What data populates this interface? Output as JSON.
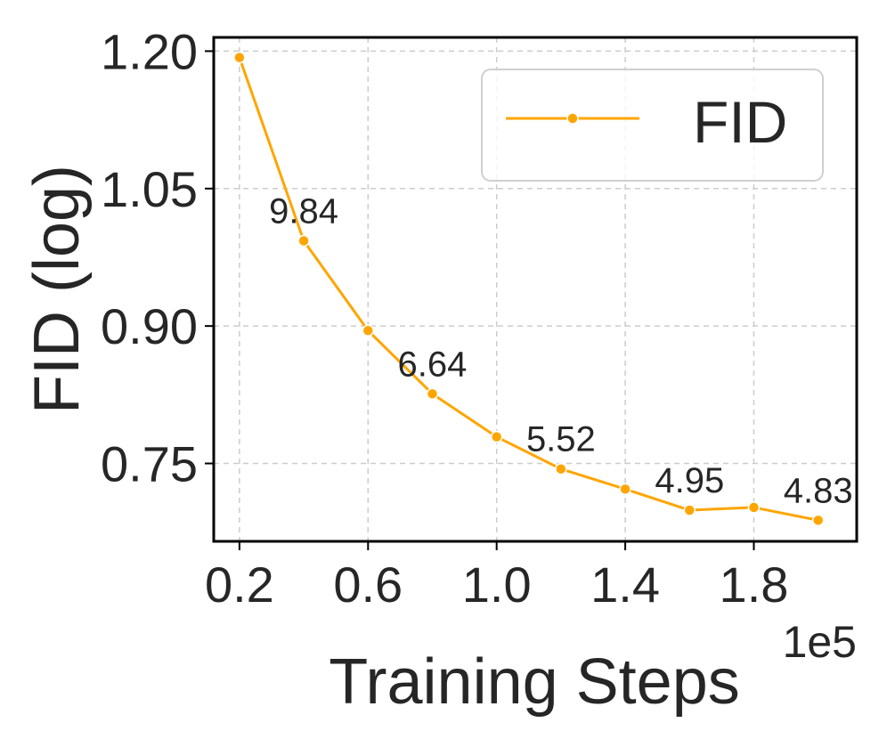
{
  "chart_data": {
    "type": "line",
    "xlabel": "Training Steps",
    "ylabel": "FID (log)",
    "x_offset_label": "1e5",
    "x_ticks": [
      "0.2",
      "0.6",
      "1.0",
      "1.4",
      "1.8"
    ],
    "y_ticks": [
      "0.75",
      "0.90",
      "1.05",
      "1.20"
    ],
    "xlim": [
      0.12,
      2.12
    ],
    "ylim": [
      0.665,
      1.215
    ],
    "grid": true,
    "legend_position": "top-right",
    "series": [
      {
        "name": "FID",
        "color": "#FFA500",
        "x": [
          0.2,
          0.4,
          0.6,
          0.8,
          1.0,
          1.2,
          1.4,
          1.6,
          1.8,
          2.0
        ],
        "y": [
          1.193,
          0.993,
          0.895,
          0.826,
          0.779,
          0.744,
          0.722,
          0.699,
          0.702,
          0.688
        ]
      }
    ],
    "annotations": [
      {
        "text": "9.84",
        "x": 0.4,
        "y": 0.993
      },
      {
        "text": "6.64",
        "x": 0.8,
        "y": 0.826
      },
      {
        "text": "5.52",
        "x": 1.2,
        "y": 0.744
      },
      {
        "text": "4.95",
        "x": 1.6,
        "y": 0.699
      },
      {
        "text": "4.83",
        "x": 2.0,
        "y": 0.688
      }
    ]
  }
}
